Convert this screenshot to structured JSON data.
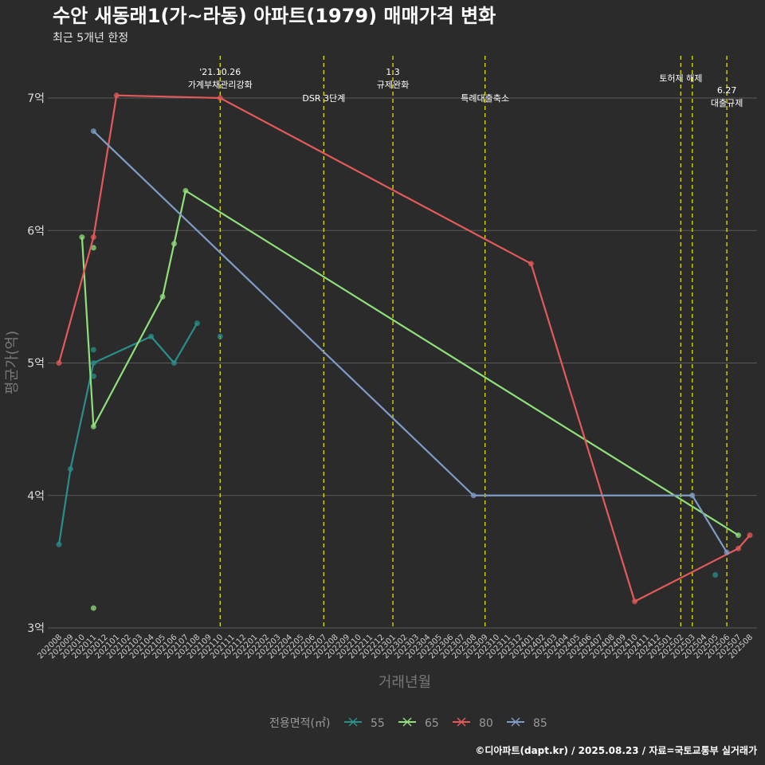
{
  "chart_data": {
    "type": "line",
    "title": "수안 새동래1(가~라동) 아파트(1979) 매매가격 변화",
    "subtitle": "최근 5개년 한정",
    "xlabel": "거래년월",
    "ylabel": "평균가(억)",
    "caption": "©디아파트(dapt.kr) / 2025.08.23 / 자료=국토교통부 실거래가",
    "ylim": [
      2.9,
      7.4
    ],
    "yticks": [
      3,
      4,
      5,
      6,
      7
    ],
    "ytick_labels": [
      "3억",
      "4억",
      "5억",
      "6억",
      "7억"
    ],
    "x_categories": [
      "202008",
      "202009",
      "202010",
      "202011",
      "202012",
      "202101",
      "202102",
      "202103",
      "202104",
      "202105",
      "202106",
      "202107",
      "202108",
      "202109",
      "202110",
      "202111",
      "202112",
      "202201",
      "202202",
      "202203",
      "202204",
      "202205",
      "202206",
      "202207",
      "202208",
      "202209",
      "202210",
      "202211",
      "202212",
      "202301",
      "202302",
      "202303",
      "202304",
      "202305",
      "202306",
      "202307",
      "202308",
      "202309",
      "202310",
      "202311",
      "202312",
      "202401",
      "202402",
      "202403",
      "202404",
      "202405",
      "202406",
      "202407",
      "202408",
      "202409",
      "202410",
      "202411",
      "202412",
      "202501",
      "202502",
      "202503",
      "202504",
      "202505",
      "202506",
      "202507",
      "202508"
    ],
    "legend_title": "전용면적(㎡)",
    "series": [
      {
        "name": "55",
        "color": "#2a8f8b",
        "x": [
          0,
          1,
          3,
          8,
          10,
          12
        ],
        "values": [
          3.63,
          4.2,
          5.0,
          5.2,
          5.0,
          5.3
        ],
        "points": [
          {
            "x": 3,
            "y": 5.1
          },
          {
            "x": 3,
            "y": 4.9
          },
          {
            "x": 14,
            "y": 5.2
          },
          {
            "x": 57,
            "y": 3.4
          }
        ]
      },
      {
        "name": "65",
        "color": "#8fe07a",
        "x": [
          2,
          3,
          9,
          10,
          11,
          59
        ],
        "values": [
          5.95,
          4.52,
          5.5,
          5.9,
          6.3,
          3.7
        ],
        "points": [
          {
            "x": 3,
            "y": 3.15
          },
          {
            "x": 3,
            "y": 5.87
          }
        ]
      },
      {
        "name": "80",
        "color": "#e45a5a",
        "x": [
          0,
          3,
          5,
          14,
          41,
          50,
          59,
          60
        ],
        "values": [
          5.0,
          5.95,
          7.02,
          7.0,
          5.75,
          3.2,
          3.6,
          3.7
        ],
        "points": []
      },
      {
        "name": "85",
        "color": "#7f9cc7",
        "x": [
          3,
          36,
          55,
          58
        ],
        "values": [
          6.75,
          4.0,
          4.0,
          3.57
        ],
        "points": []
      }
    ],
    "annotations": [
      {
        "x": 14,
        "lines": [
          "'21.10.26",
          "가계부채관리강화"
        ]
      },
      {
        "x": 23,
        "lines": [
          "DSR 3단계"
        ]
      },
      {
        "x": 29,
        "lines": [
          "1.3",
          "규제완화"
        ]
      },
      {
        "x": 37,
        "lines": [
          "특례대출축소"
        ]
      },
      {
        "x": 54,
        "lines": [
          "토허제 해제"
        ]
      },
      {
        "x": 55,
        "lines": []
      },
      {
        "x": 58,
        "lines": [
          "6.27",
          "대출규제"
        ]
      }
    ]
  }
}
